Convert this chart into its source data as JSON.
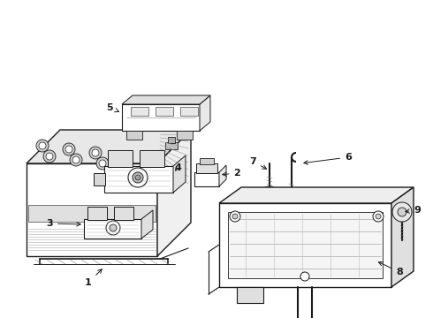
{
  "background_color": "#ffffff",
  "line_color": "#1a1a1a",
  "fig_width": 4.9,
  "fig_height": 3.6,
  "dpi": 100,
  "gray": "#888888",
  "light_gray": "#cccccc"
}
